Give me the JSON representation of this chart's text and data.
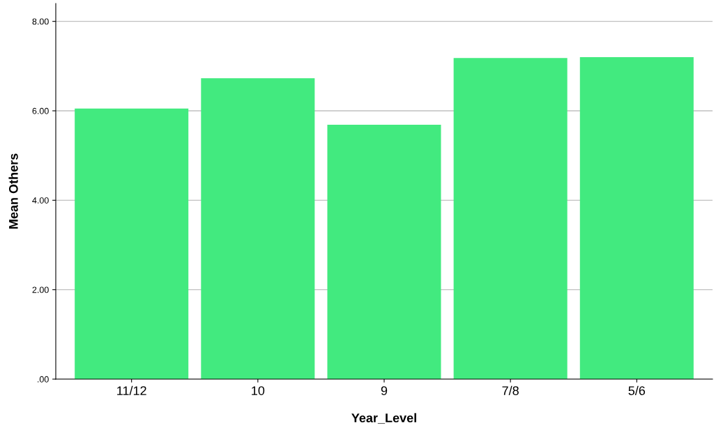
{
  "chart_data": {
    "type": "bar",
    "xlabel": "Year_Level",
    "ylabel": "Mean Others",
    "categories": [
      "11/12",
      "10",
      "9",
      "7/8",
      "5/6"
    ],
    "values": [
      6.05,
      6.73,
      5.69,
      7.18,
      7.2
    ],
    "color": "#42ea7f",
    "ylim": [
      0,
      8.4
    ],
    "yticks": [
      {
        "value": 0,
        "label": ".00"
      },
      {
        "value": 2,
        "label": "2.00"
      },
      {
        "value": 4,
        "label": "4.00"
      },
      {
        "value": 6,
        "label": "6.00"
      },
      {
        "value": 8,
        "label": "8.00"
      }
    ],
    "grid": "y"
  }
}
